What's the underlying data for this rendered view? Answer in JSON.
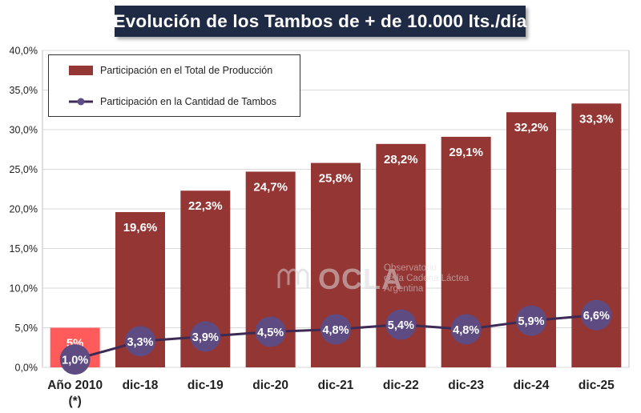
{
  "title": "Evolución  de los Tambos  de + de 10.000 lts./día",
  "legend": {
    "bar_label": "Participación en el Total de Producción",
    "line_label": "Participación en la Cantidad de Tambos"
  },
  "watermark": {
    "logo_text": "OCLA",
    "line1": "Observatorio",
    "line2": "de la Cadena Láctea",
    "line3": "Argentina"
  },
  "chart_data": {
    "type": "bar",
    "title": "Evolución  de los Tambos  de + de 10.000 lts./día",
    "categories": [
      "Año 2010\n(*)",
      "dic-18",
      "dic-19",
      "dic-20",
      "dic-21",
      "dic-22",
      "dic-23",
      "dic-24",
      "dic-25"
    ],
    "y_ticks": [
      "0,0%",
      "5,0%",
      "10,0%",
      "15,0%",
      "20,0%",
      "25,0%",
      "30,0%",
      "35,0%",
      "40,0%"
    ],
    "ylim": [
      0,
      40
    ],
    "series": [
      {
        "name": "Participación en el Total de Producción",
        "kind": "bar",
        "values": [
          5,
          19.6,
          22.3,
          24.7,
          25.8,
          28.2,
          29.1,
          32.2,
          33.3
        ],
        "labels": [
          "5%",
          "19,6%",
          "22,3%",
          "24,7%",
          "25,8%",
          "28,2%",
          "29,1%",
          "32,2%",
          "33,3%"
        ]
      },
      {
        "name": "Participación en la Cantidad de Tambos",
        "kind": "line",
        "values": [
          1.0,
          3.3,
          3.9,
          4.5,
          4.8,
          5.4,
          4.8,
          5.9,
          6.6
        ],
        "labels": [
          "1,0%",
          "3,3%",
          "3,9%",
          "4,5%",
          "4,8%",
          "5,4%",
          "4,8%",
          "5,9%",
          "6,6%"
        ]
      }
    ],
    "colors": {
      "bar": "#943634",
      "bar_highlight": "#ff5b5b",
      "line": "#3d2a55",
      "marker": "#5e4b82",
      "grid": "#d9d9d9",
      "title_bg": "#1f2a44"
    }
  }
}
